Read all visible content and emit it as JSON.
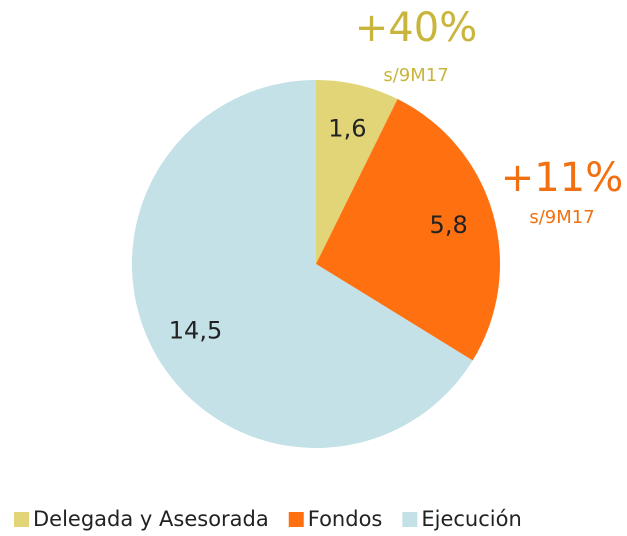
{
  "chart_data": {
    "type": "pie",
    "categories": [
      "Delegada y Asesorada",
      "Fondos",
      "Ejecución"
    ],
    "values": [
      1.6,
      5.8,
      14.5
    ],
    "value_labels": [
      "1,6",
      "5,8",
      "14,5"
    ],
    "colors": [
      "#e2d577",
      "#ff7011",
      "#c3e1e7"
    ],
    "legend": "bottom",
    "annotations": [
      {
        "text": "+40%",
        "subtext": "s/9M17",
        "color": "#c9b53b"
      },
      {
        "text": "+11%",
        "subtext": "s/9M17",
        "color": "#f07012"
      }
    ]
  }
}
